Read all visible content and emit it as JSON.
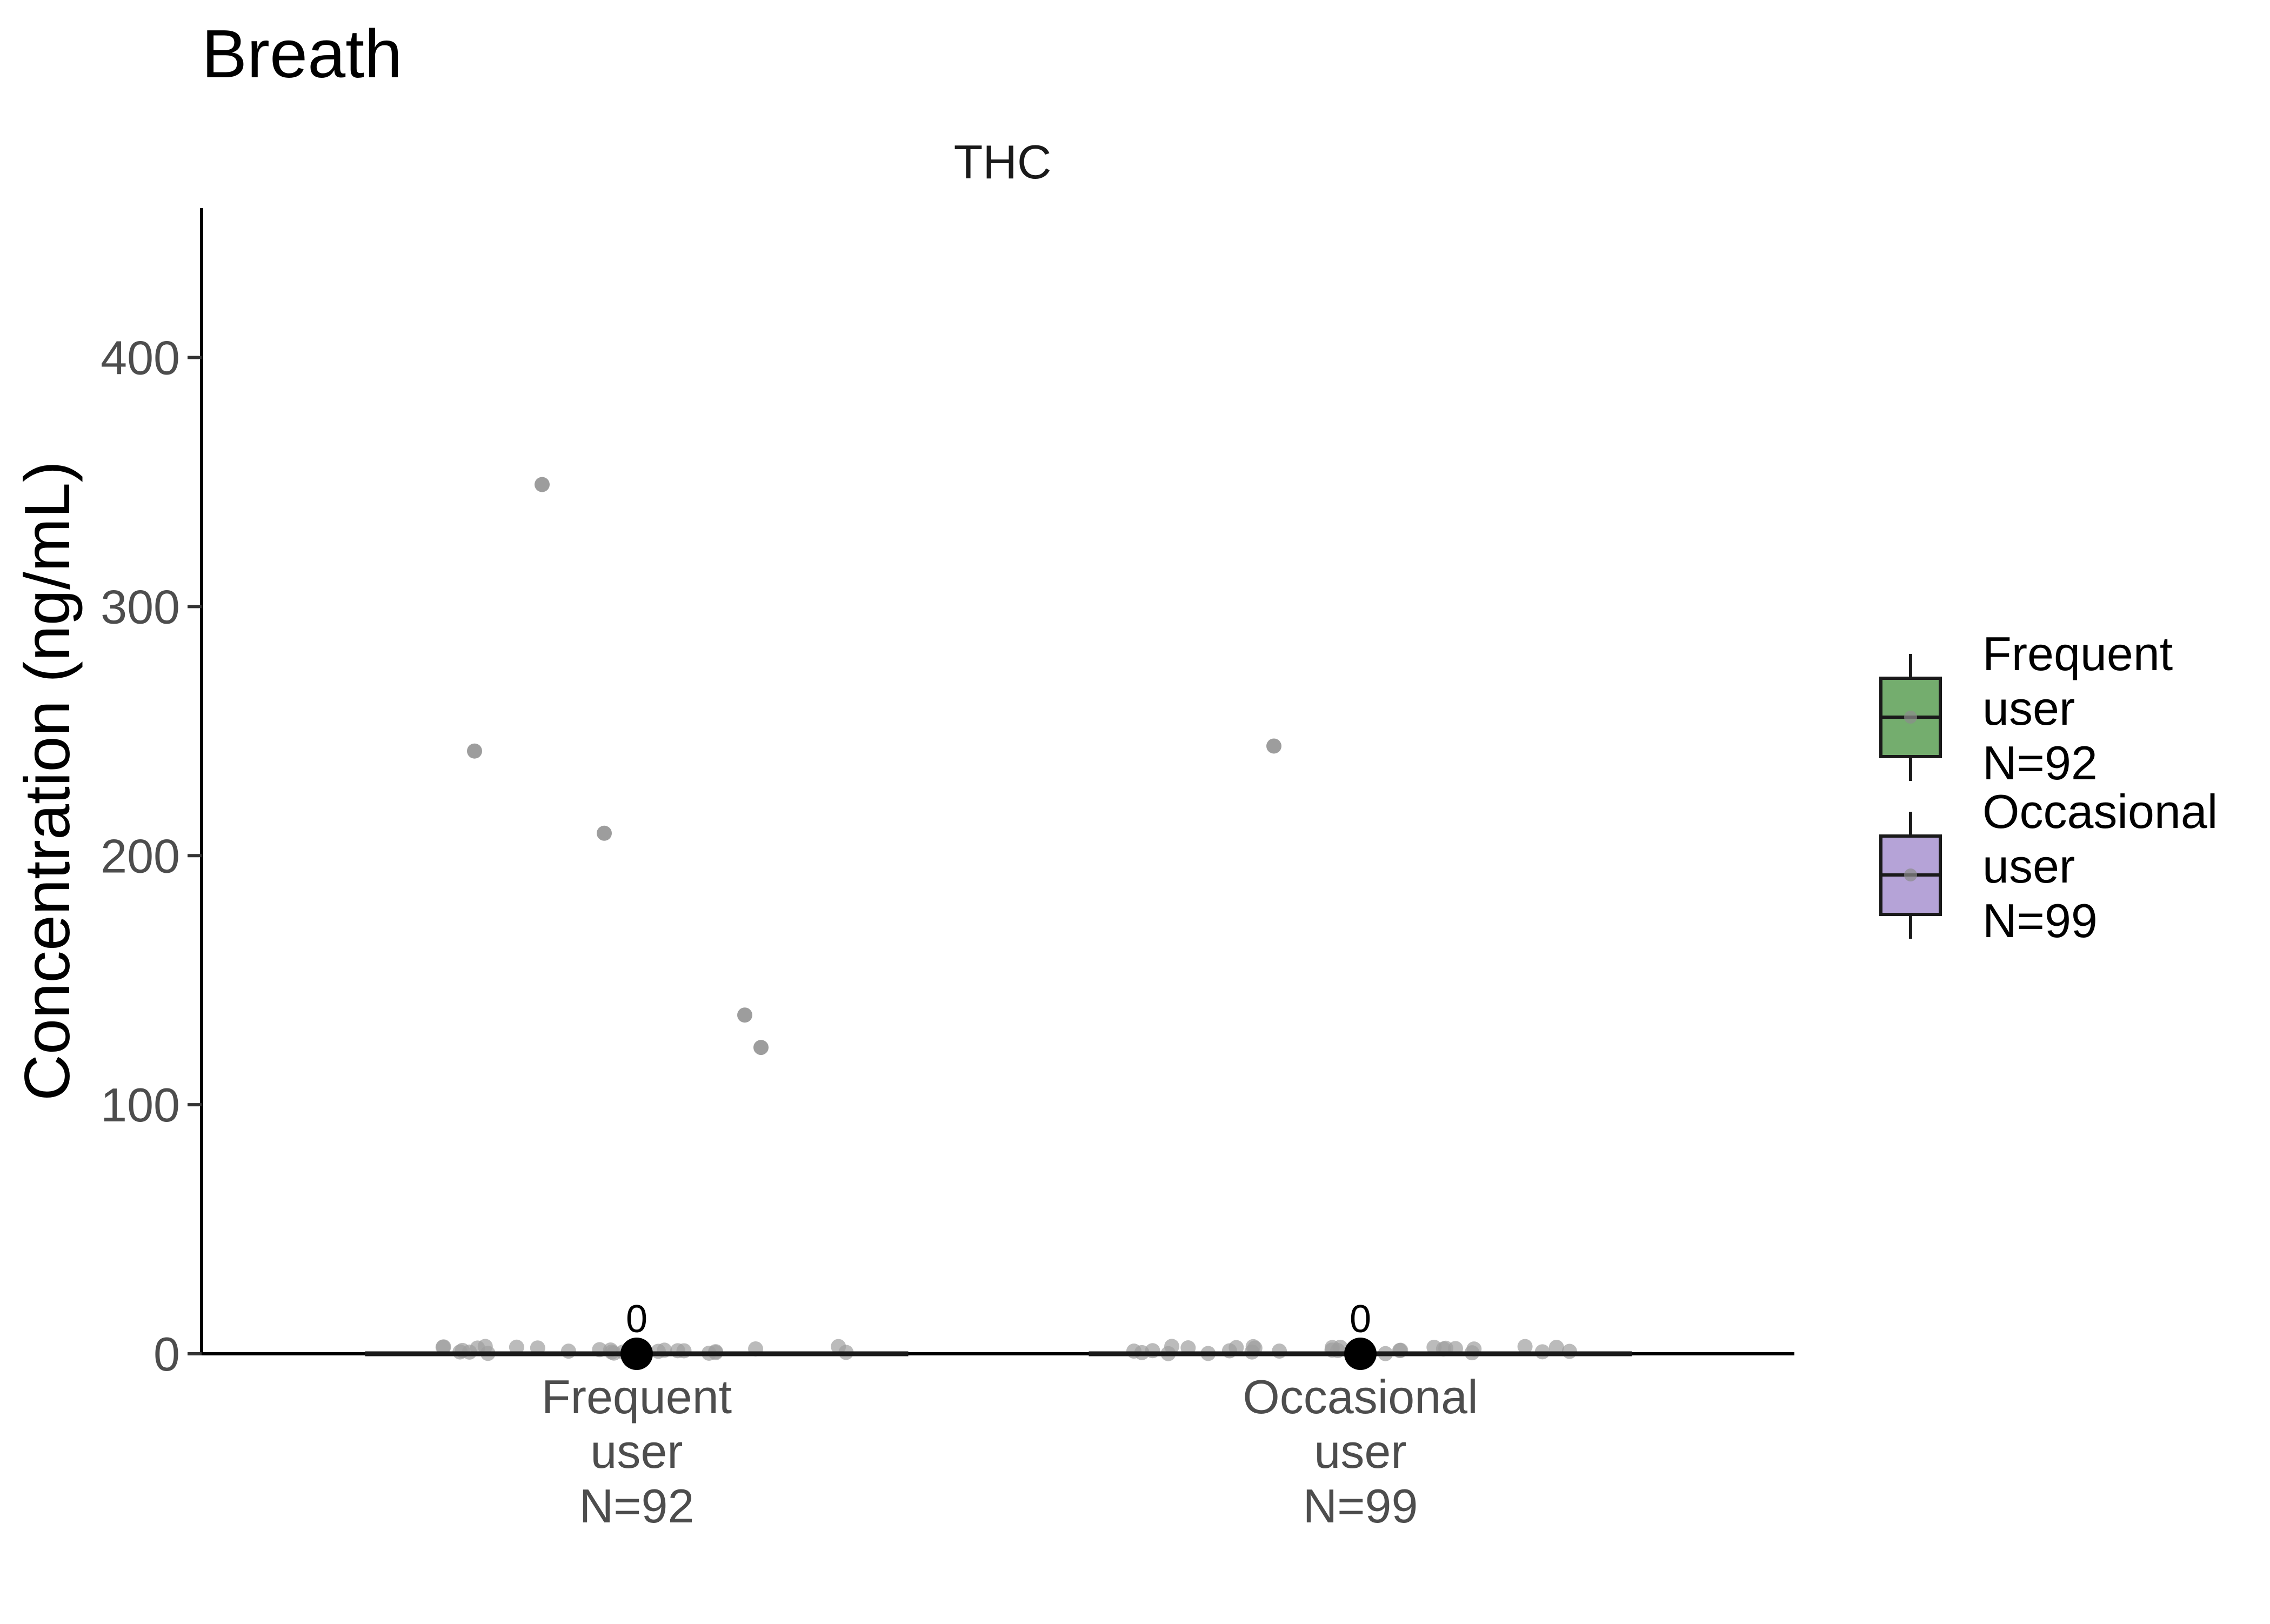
{
  "chart_data": {
    "type": "box",
    "title": "Breath",
    "facet_label": "THC",
    "xlabel": "",
    "ylabel": "Concentration (ng/mL)",
    "ylim": [
      0,
      460
    ],
    "yticks": [
      0,
      100,
      200,
      300,
      400
    ],
    "grid": false,
    "legend_position": "right",
    "categories": [
      {
        "label": [
          "Frequent",
          "user",
          "N=92"
        ],
        "color": "#74AD6E"
      },
      {
        "label": [
          "Occasional",
          "user",
          "N=99"
        ],
        "color": "#B5A3D7"
      }
    ],
    "series": [
      {
        "category": "Frequent user N=92",
        "box": {
          "q1": 0,
          "median": 0,
          "q3": 0,
          "whisker_low": 0,
          "whisker_high": 0
        },
        "median_label": "0",
        "outliers": [
          {
            "x": -0.6,
            "y": 242
          },
          {
            "x": -0.35,
            "y": 349
          },
          {
            "x": -0.12,
            "y": 209
          },
          {
            "x": 0.4,
            "y": 136
          },
          {
            "x": 0.46,
            "y": 123
          }
        ],
        "near_zero_points": 28
      },
      {
        "category": "Occasional user N=99",
        "box": {
          "q1": 0,
          "median": 0,
          "q3": 0,
          "whisker_low": 0,
          "whisker_high": 0
        },
        "median_label": "0",
        "outliers": [
          {
            "x": -0.32,
            "y": 244
          }
        ],
        "near_zero_points": 30
      }
    ],
    "legend": [
      {
        "label": [
          "Frequent",
          "user",
          "N=92"
        ],
        "color": "#74AD6E"
      },
      {
        "label": [
          "Occasional",
          "user",
          "N=99"
        ],
        "color": "#B5A3D7"
      }
    ]
  }
}
